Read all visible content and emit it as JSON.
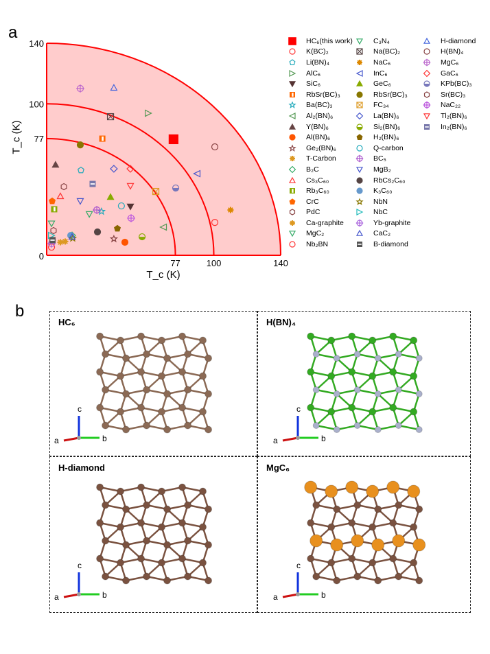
{
  "panels": {
    "a": "a",
    "b": "b"
  },
  "chart_data": {
    "type": "scatter",
    "xlabel": "T_c (K)",
    "ylabel": "T_c (K)",
    "xlim": [
      0,
      140
    ],
    "ylim": [
      0,
      140
    ],
    "xticks": [
      "0",
      "77",
      "100",
      "140"
    ],
    "yticks": [
      "0",
      "77",
      "100",
      "140"
    ],
    "arcs": [
      77,
      100,
      140
    ],
    "fill_color": "#ffcccc",
    "arc_color": "#ff0000",
    "legend_placement": "right",
    "points": [
      {
        "name": "HC₆(this work)",
        "shape": "square-filled",
        "color": "#ff0000",
        "x": 75.9,
        "y": 76.6
      },
      {
        "name": "K(BC)₂",
        "shape": "circle",
        "color": "#ff3333",
        "x": 100.6,
        "y": 21.7
      },
      {
        "name": "Li(BN)₄",
        "shape": "pentagon",
        "color": "#22aabb",
        "x": 20.5,
        "y": 56.2
      },
      {
        "name": "AlC₆",
        "shape": "tri-right",
        "color": "#559955",
        "x": 60.8,
        "y": 93.8
      },
      {
        "name": "SiC₆",
        "shape": "tri-down-filled",
        "color": "#553333",
        "x": 50.1,
        "y": 32.2
      },
      {
        "name": "RbSr(BC)₃",
        "shape": "half-square",
        "color": "#ff6600",
        "x": 33.3,
        "y": 77.0
      },
      {
        "name": "Ba(BC)₃",
        "shape": "star",
        "color": "#22aabb",
        "x": 32.8,
        "y": 29.0
      },
      {
        "name": "Al₂(BN)₆",
        "shape": "tri-left",
        "color": "#559955",
        "x": 69.8,
        "y": 18.6
      },
      {
        "name": "Y(BN)₆",
        "shape": "tri-up-filled",
        "color": "#664444",
        "x": 5.3,
        "y": 59.8
      },
      {
        "name": "Al(BN)₆",
        "shape": "circle-filled",
        "color": "#ff5500",
        "x": 46.8,
        "y": 8.6
      },
      {
        "name": "Ge₂(BN)₆",
        "shape": "star",
        "color": "#884444",
        "x": 40.2,
        "y": 10.9
      },
      {
        "name": "T-Carbon",
        "shape": "asterisk",
        "color": "#dd9922",
        "x": 11.1,
        "y": 9.1
      },
      {
        "name": "B₂C",
        "shape": "diamond",
        "color": "#33aa66",
        "x": 15.2,
        "y": 13.1
      },
      {
        "name": "Cs₃C₆₀",
        "shape": "tri-up",
        "color": "#ff3333",
        "x": 8.2,
        "y": 39.0
      },
      {
        "name": "Rb₃C₆₀",
        "shape": "half-square",
        "color": "#88aa00",
        "x": 4.5,
        "y": 30.4
      },
      {
        "name": "CrC",
        "shape": "pentagon-filled",
        "color": "#ff6600",
        "x": 3.3,
        "y": 35.8
      },
      {
        "name": "PdC",
        "shape": "hexagon",
        "color": "#884444",
        "x": 4.1,
        "y": 16.3
      },
      {
        "name": "Ca-graphite",
        "shape": "asterisk",
        "color": "#dd9922",
        "x": 8.2,
        "y": 8.6
      },
      {
        "name": "MgC₂",
        "shape": "tri-down",
        "color": "#33aa66",
        "x": 2.9,
        "y": 21.0
      },
      {
        "name": "Nb₂BN",
        "shape": "circle",
        "color": "#ff3333",
        "x": 2.9,
        "y": 5.4
      },
      {
        "name": "C₃N₄",
        "shape": "tri-down",
        "color": "#33aa66",
        "x": 25.5,
        "y": 27.2
      },
      {
        "name": "Na(BC)₂",
        "shape": "box-x",
        "color": "#554444",
        "x": 38.2,
        "y": 91.5
      },
      {
        "name": "NaC₆",
        "shape": "asterisk",
        "color": "#dd8800",
        "x": 110.0,
        "y": 29.9
      },
      {
        "name": "InC₆",
        "shape": "tri-left",
        "color": "#4455cc",
        "x": 89.9,
        "y": 53.9
      },
      {
        "name": "GeC₆",
        "shape": "tri-up-filled",
        "color": "#88aa00",
        "x": 38.2,
        "y": 38.5
      },
      {
        "name": "RbSr(BC)₃",
        "shape": "circle-filled",
        "color": "#887700",
        "x": 20.1,
        "y": 72.9
      },
      {
        "name": "FC₃₄",
        "shape": "box-x",
        "color": "#dd9922",
        "x": 65.3,
        "y": 42.1
      },
      {
        "name": "La(BN)₆",
        "shape": "diamond",
        "color": "#4455cc",
        "x": 40.2,
        "y": 57.1
      },
      {
        "name": "Si₂(BN)₆",
        "shape": "half-circle",
        "color": "#88aa00",
        "x": 57.1,
        "y": 12.2
      },
      {
        "name": "H₂(BN)₆",
        "shape": "pentagon-filled",
        "color": "#886600",
        "x": 42.3,
        "y": 17.7
      },
      {
        "name": "Q-carbon",
        "shape": "circle",
        "color": "#22aabb",
        "x": 44.7,
        "y": 32.6
      },
      {
        "name": "BC₅",
        "shape": "cross-circle",
        "color": "#aa55cc",
        "x": 30.0,
        "y": 29.9
      },
      {
        "name": "MgB₂",
        "shape": "tri-down",
        "color": "#4455cc",
        "x": 20.1,
        "y": 35.8
      },
      {
        "name": "RbCs₂C₆₀",
        "shape": "circle-filled",
        "color": "#554444",
        "x": 30.4,
        "y": 15.4
      },
      {
        "name": "K₃C₆₀",
        "shape": "circle-filled",
        "color": "#6699cc",
        "x": 14.4,
        "y": 13.1
      },
      {
        "name": "NbN",
        "shape": "star",
        "color": "#887700",
        "x": 15.6,
        "y": 11.3
      },
      {
        "name": "NbC",
        "shape": "tri-right",
        "color": "#22bbbb",
        "x": 2.9,
        "y": 13.1
      },
      {
        "name": "Yb-graphite",
        "shape": "cross-circle",
        "color": "#aa66dd",
        "x": 2.9,
        "y": 7.7
      },
      {
        "name": "CaC₂",
        "shape": "tri-up",
        "color": "#4455cc",
        "x": 15.2,
        "y": 12.2
      },
      {
        "name": "B-diamond",
        "shape": "box-minus",
        "color": "#555555",
        "x": 3.5,
        "y": 10.0
      },
      {
        "name": "H-diamond",
        "shape": "tri-up",
        "color": "#4466dd",
        "x": 40.2,
        "y": 110.6
      },
      {
        "name": "H(BN)₄",
        "shape": "circle",
        "color": "#884444",
        "x": 100.6,
        "y": 71.6
      },
      {
        "name": "MgC₆",
        "shape": "cross-circle",
        "color": "#bb66cc",
        "x": 20.1,
        "y": 110.1
      },
      {
        "name": "GaC₆",
        "shape": "diamond",
        "color": "#ff3333",
        "x": 50.1,
        "y": 57.1
      },
      {
        "name": "KPb(BC)₃",
        "shape": "half-circle",
        "color": "#7777bb",
        "x": 77.2,
        "y": 44.4
      },
      {
        "name": "Sr(BC)₃",
        "shape": "hexagon",
        "color": "#884444",
        "x": 10.3,
        "y": 45.3
      },
      {
        "name": "NaC₂₂",
        "shape": "cross-circle",
        "color": "#bb55dd",
        "x": 50.5,
        "y": 24.5
      },
      {
        "name": "Tl₂(BN)₆",
        "shape": "tri-down",
        "color": "#ff3333",
        "x": 50.1,
        "y": 45.8
      },
      {
        "name": "In₂(BN)₆",
        "shape": "box-minus",
        "color": "#7777aa",
        "x": 27.5,
        "y": 47.1
      }
    ]
  },
  "structures": [
    {
      "title": "HC₆",
      "atom": "#8b6a55",
      "atom2": "#e8c8c8",
      "axes": [
        "c",
        "a",
        "b"
      ]
    },
    {
      "title": "H(BN)₄",
      "atom": "#33aa22",
      "atom2": "#aab0cc",
      "axes": [
        "c",
        "a",
        "b"
      ]
    },
    {
      "title": "H-diamond",
      "atom": "#7a5240",
      "atom2": "#e0c0c0",
      "axes": [
        "c",
        "a",
        "b"
      ]
    },
    {
      "title": "MgC₆",
      "atom": "#7a5240",
      "atom2": "#e8901e",
      "axes": [
        "c",
        "a",
        "b"
      ]
    }
  ]
}
